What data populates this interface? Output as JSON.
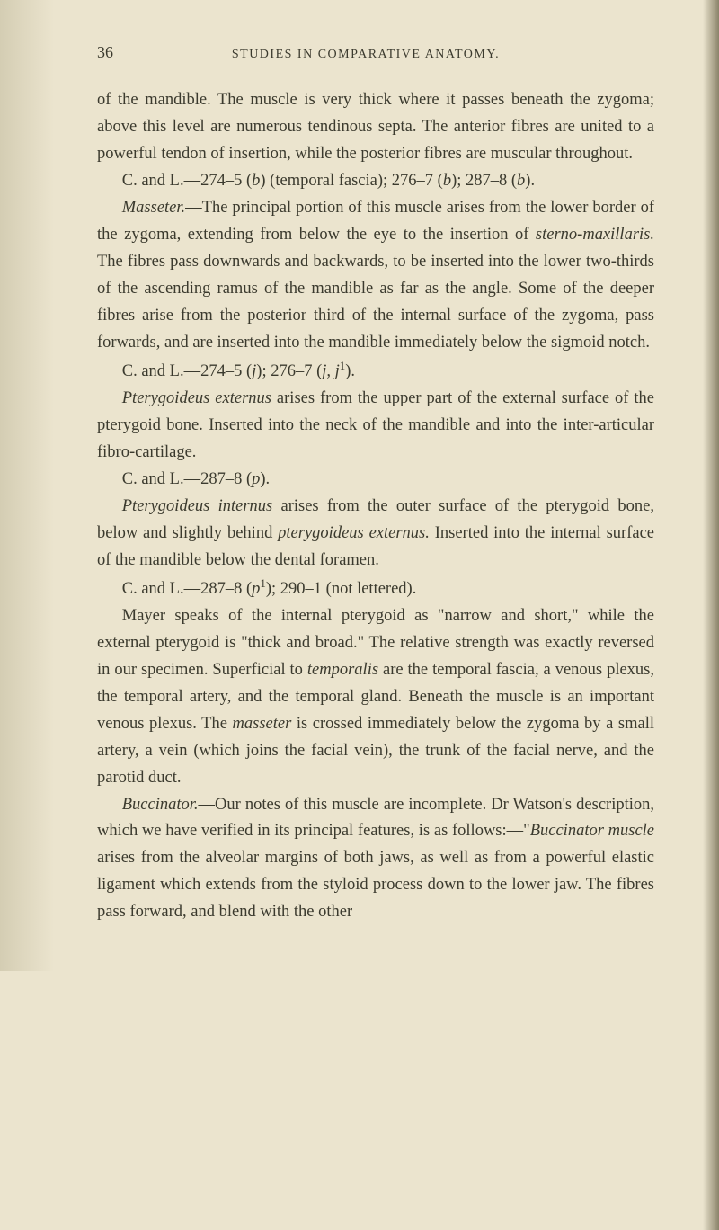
{
  "page": {
    "number": "36",
    "running_title": "STUDIES IN COMPARATIVE ANATOMY."
  },
  "paragraphs": {
    "p1": "of the mandible. The muscle is very thick where it passes beneath the zygoma; above this level are numerous tendinous septa. The anterior fibres are united to a powerful tendon of insertion, while the posterior fibres are muscular throughout.",
    "p2_a": "C. and L.—274–5 (",
    "p2_b": "b",
    "p2_c": ") (temporal fascia); 276–7 (",
    "p2_d": "b",
    "p2_e": "); 287–8 (",
    "p2_f": "b",
    "p2_g": ").",
    "p3_a": "Masseter.",
    "p3_b": "—The principal portion of this muscle arises from the lower border of the zygoma, extending from below the eye to the insertion of ",
    "p3_c": "sterno-maxillaris.",
    "p3_d": " The fibres pass downwards and backwards, to be inserted into the lower two-thirds of the ascending ramus of the mandible as far as the angle. Some of the deeper fibres arise from the posterior third of the internal surface of the zygoma, pass forwards, and are inserted into the mandible immediately below the sigmoid notch.",
    "p4_a": "C. and L.—274–5 (",
    "p4_b": "j",
    "p4_c": "); 276–7 (",
    "p4_d": "j, j",
    "p4_e": "1",
    "p4_f": ").",
    "p5_a": "Pterygoideus externus",
    "p5_b": " arises from the upper part of the external surface of the pterygoid bone. Inserted into the neck of the mandible and into the inter-articular fibro-cartilage.",
    "p6_a": "C. and L.—287–8 (",
    "p6_b": "p",
    "p6_c": ").",
    "p7_a": "Pterygoideus internus",
    "p7_b": " arises from the outer surface of the pterygoid bone, below and slightly behind ",
    "p7_c": "pterygoideus externus.",
    "p7_d": " Inserted into the internal surface of the mandible below the dental foramen.",
    "p8_a": "C. and L.—287–8 (",
    "p8_b": "p",
    "p8_c": "1",
    "p8_d": "); 290–1 (not lettered).",
    "p9_a": "Mayer speaks of the internal pterygoid as \"narrow and short,\" while the external pterygoid is \"thick and broad.\" The relative strength was exactly reversed in our specimen. Superficial to ",
    "p9_b": "temporalis",
    "p9_c": " are the temporal fascia, a venous plexus, the temporal artery, and the temporal gland. Beneath the muscle is an important venous plexus. The ",
    "p9_d": "masseter",
    "p9_e": " is crossed immediately below the zygoma by a small artery, a vein (which joins the facial vein), the trunk of the facial nerve, and the parotid duct.",
    "p10_a": "Buccinator.",
    "p10_b": "—Our notes of this muscle are incomplete. Dr Watson's description, which we have verified in its principal features, is as follows:—\"",
    "p10_c": "Buccinator muscle",
    "p10_d": " arises from the alveolar margins of both jaws, as well as from a powerful elastic ligament which extends from the styloid process down to the lower jaw. The fibres pass forward, and blend with the other"
  },
  "styling": {
    "background_color": "#ebe4ce",
    "text_color": "#3b3a2e",
    "font_size": 18.5,
    "line_height": 1.62,
    "shadow_color": "#8a836a"
  }
}
